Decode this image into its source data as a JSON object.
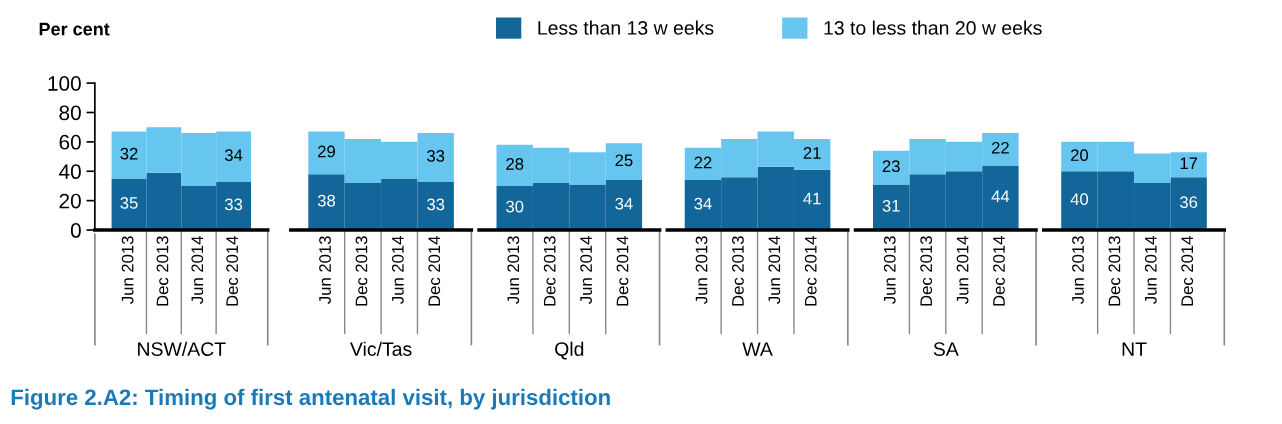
{
  "chart_data": [
    {
      "type": "bar",
      "stacked": true,
      "ylabel": "Per cent",
      "xlabel": "NSW/ACT",
      "categories": [
        "Jun 2013",
        "Dec 2013",
        "Jun 2014",
        "Dec 2014"
      ],
      "ylim": [
        0,
        100
      ],
      "yticks": [
        0,
        20,
        40,
        60,
        80,
        100
      ],
      "legend": "top",
      "grid": false,
      "annotations": [
        "Figure 2.A2: Timing of first antenatal visit, by jurisdiction"
      ],
      "series": [
        {
          "name": "Less than 13 w eeks",
          "color": "#136699",
          "values": [
            35,
            39,
            30,
            33
          ],
          "value_labels": [
            "35",
            null,
            null,
            "33"
          ]
        },
        {
          "name": "13 to less than 20 w eeks",
          "color": "#66c6ef",
          "values": [
            32,
            31,
            36,
            34
          ],
          "value_labels": [
            "32",
            null,
            null,
            "34"
          ]
        }
      ]
    },
    {
      "type": "bar",
      "stacked": true,
      "xlabel": "Vic/Tas",
      "categories": [
        "Jun 2013",
        "Dec 2013",
        "Jun 2014",
        "Dec 2014"
      ],
      "ylim": [
        0,
        100
      ],
      "tick_labels": "x",
      "grid": false,
      "series": [
        {
          "color": "#136699",
          "values": [
            38,
            32,
            35,
            33
          ],
          "value_labels": [
            "38",
            null,
            null,
            "33"
          ]
        },
        {
          "color": "#66c6ef",
          "values": [
            29,
            30,
            25,
            33
          ],
          "value_labels": [
            "29",
            null,
            null,
            "33"
          ]
        }
      ]
    },
    {
      "type": "bar",
      "stacked": true,
      "xlabel": "Qld",
      "categories": [
        "Jun 2013",
        "Dec 2013",
        "Jun 2014",
        "Dec 2014"
      ],
      "ylim": [
        0,
        100
      ],
      "tick_labels": "x",
      "grid": false,
      "series": [
        {
          "color": "#136699",
          "values": [
            30,
            32,
            31,
            34
          ],
          "value_labels": [
            "30",
            null,
            null,
            "34"
          ]
        },
        {
          "color": "#66c6ef",
          "values": [
            28,
            24,
            22,
            25
          ],
          "value_labels": [
            "28",
            null,
            null,
            "25"
          ]
        }
      ]
    },
    {
      "type": "bar",
      "stacked": true,
      "xlabel": "WA",
      "categories": [
        "Jun 2013",
        "Dec 2013",
        "Jun 2014",
        "Dec 2014"
      ],
      "ylim": [
        0,
        100
      ],
      "tick_labels": "x",
      "grid": false,
      "series": [
        {
          "color": "#136699",
          "values": [
            34,
            36,
            43,
            41
          ],
          "value_labels": [
            "34",
            null,
            null,
            "41"
          ]
        },
        {
          "color": "#66c6ef",
          "values": [
            22,
            26,
            24,
            21
          ],
          "value_labels": [
            "22",
            null,
            null,
            "21"
          ]
        }
      ]
    },
    {
      "type": "bar",
      "stacked": true,
      "xlabel": "SA",
      "categories": [
        "Jun 2013",
        "Dec 2013",
        "Jun 2014",
        "Dec 2014"
      ],
      "ylim": [
        0,
        100
      ],
      "tick_labels": "x",
      "grid": false,
      "series": [
        {
          "color": "#136699",
          "values": [
            31,
            38,
            40,
            44
          ],
          "value_labels": [
            "31",
            null,
            null,
            "44"
          ]
        },
        {
          "color": "#66c6ef",
          "values": [
            23,
            24,
            20,
            22
          ],
          "value_labels": [
            "23",
            null,
            null,
            "22"
          ]
        }
      ]
    },
    {
      "type": "bar",
      "stacked": true,
      "xlabel": "NT",
      "categories": [
        "Jun 2013",
        "Dec 2013",
        "Jun 2014",
        "Dec 2014"
      ],
      "ylim": [
        0,
        100
      ],
      "tick_labels": "x",
      "grid": false,
      "series": [
        {
          "color": "#136699",
          "values": [
            40,
            40,
            32,
            36
          ],
          "value_labels": [
            "40",
            null,
            null,
            "36"
          ]
        },
        {
          "color": "#66c6ef",
          "values": [
            20,
            20,
            20,
            17
          ],
          "value_labels": [
            "20",
            null,
            null,
            "17"
          ]
        }
      ]
    }
  ]
}
